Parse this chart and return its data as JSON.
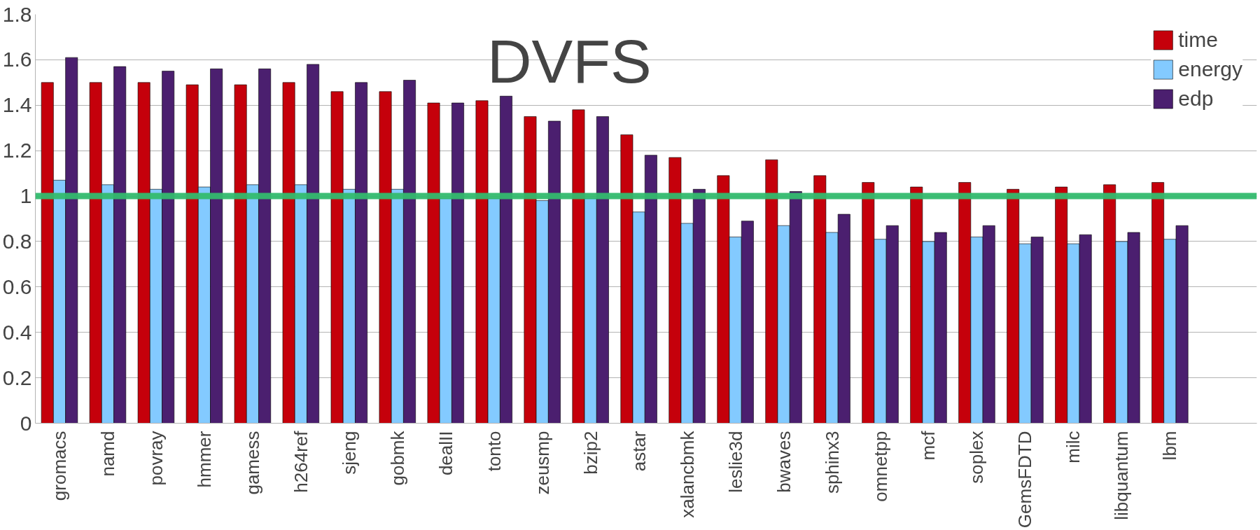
{
  "chart_data": {
    "type": "bar",
    "title": "DVFS",
    "categories": [
      "gromacs",
      "namd",
      "povray",
      "hmmer",
      "gamess",
      "h264ref",
      "sjeng",
      "gobmk",
      "dealII",
      "tonto",
      "zeusmp",
      "bzip2",
      "astar",
      "xalancbmk",
      "leslie3d",
      "bwaves",
      "sphinx3",
      "omnetpp",
      "mcf",
      "soplex",
      "GemsFDTD",
      "milc",
      "libquantum",
      "lbm"
    ],
    "series": [
      {
        "name": "time",
        "color": "#c5000b",
        "values": [
          1.5,
          1.5,
          1.5,
          1.49,
          1.49,
          1.5,
          1.46,
          1.46,
          1.41,
          1.42,
          1.35,
          1.38,
          1.27,
          1.17,
          1.09,
          1.16,
          1.09,
          1.06,
          1.04,
          1.06,
          1.03,
          1.04,
          1.05,
          1.06
        ]
      },
      {
        "name": "energy",
        "color": "#83caff",
        "values": [
          1.07,
          1.05,
          1.03,
          1.04,
          1.05,
          1.05,
          1.03,
          1.03,
          0.99,
          0.99,
          0.98,
          0.99,
          0.93,
          0.88,
          0.82,
          0.87,
          0.84,
          0.81,
          0.8,
          0.82,
          0.79,
          0.79,
          0.8,
          0.81
        ]
      },
      {
        "name": "edp",
        "color": "#4b1f6f",
        "values": [
          1.61,
          1.57,
          1.55,
          1.56,
          1.56,
          1.58,
          1.5,
          1.51,
          1.41,
          1.44,
          1.33,
          1.35,
          1.18,
          1.03,
          0.89,
          1.02,
          0.92,
          0.87,
          0.84,
          0.87,
          0.82,
          0.83,
          0.84,
          0.87
        ]
      }
    ],
    "ylim": [
      0,
      1.8
    ],
    "yticks": [
      0,
      {
        "value": 0.2,
        "label": "0.2"
      },
      {
        "value": 0.4,
        "label": "0.4"
      },
      {
        "value": 0.6,
        "label": "0.6"
      },
      {
        "value": 0.8,
        "label": "0.8"
      },
      1,
      {
        "value": 1.2,
        "label": "1.2"
      },
      {
        "value": 1.4,
        "label": "1.4"
      },
      {
        "value": 1.6,
        "label": "1.6"
      },
      {
        "value": 1.8,
        "label": "1.8"
      }
    ],
    "grid": "y",
    "legend": "top right",
    "ref_lines": [
      {
        "axis": "y",
        "value": 1,
        "color": "#33bb6e"
      }
    ]
  }
}
